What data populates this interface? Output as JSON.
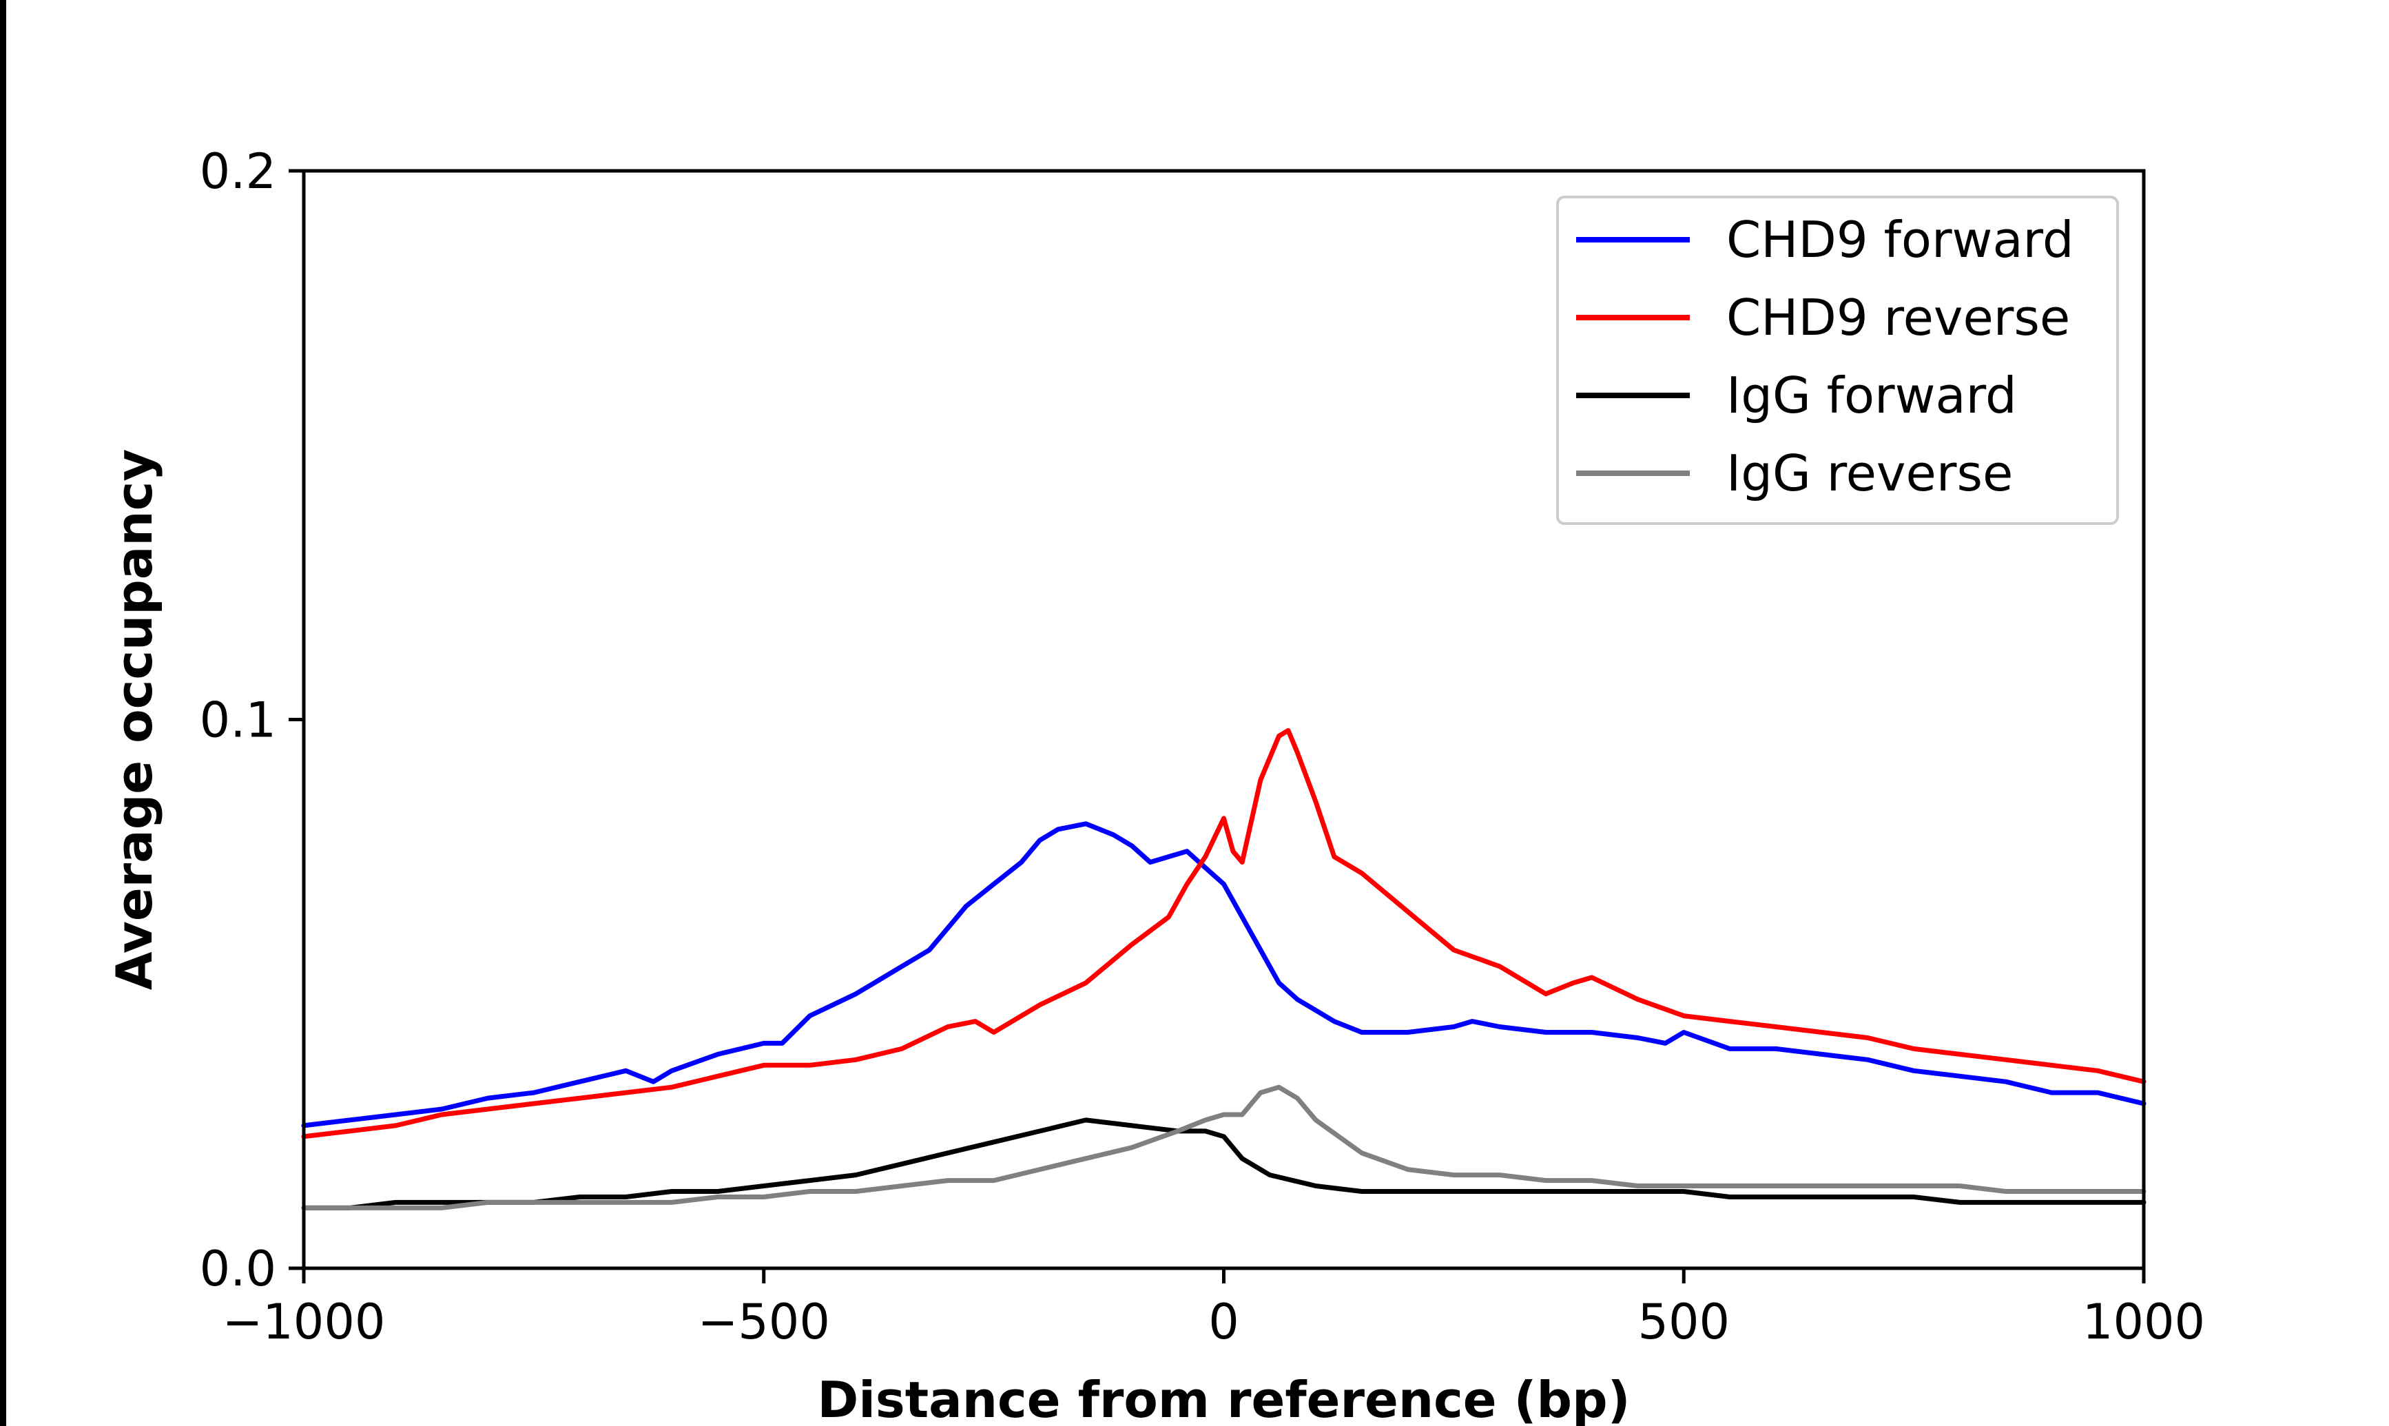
{
  "chart_data": {
    "type": "line",
    "title": "",
    "xlabel": "Distance from reference (bp)",
    "ylabel": "Average occupancy",
    "xlim": [
      -1000,
      1000
    ],
    "ylim": [
      0,
      0.2
    ],
    "xticks": [
      -1000,
      -500,
      0,
      500,
      1000
    ],
    "xtick_labels": [
      "−1000",
      "−500",
      "0",
      "500",
      "1000"
    ],
    "yticks": [
      0.0,
      0.1,
      0.2
    ],
    "ytick_labels": [
      "0.0",
      "0.1",
      "0.2"
    ],
    "grid": false,
    "legend_position": "top-right",
    "series": [
      {
        "name": "CHD9 forward",
        "color": "#0000ff",
        "x": [
          -1000,
          -950,
          -900,
          -850,
          -800,
          -750,
          -700,
          -650,
          -620,
          -600,
          -550,
          -500,
          -480,
          -450,
          -400,
          -350,
          -320,
          -300,
          -280,
          -250,
          -220,
          -200,
          -180,
          -150,
          -120,
          -100,
          -80,
          -60,
          -40,
          -20,
          0,
          20,
          40,
          60,
          80,
          100,
          120,
          150,
          200,
          250,
          270,
          300,
          350,
          400,
          450,
          480,
          500,
          550,
          600,
          650,
          700,
          750,
          800,
          850,
          900,
          950,
          1000
        ],
        "y": [
          0.026,
          0.027,
          0.028,
          0.029,
          0.031,
          0.032,
          0.034,
          0.036,
          0.034,
          0.036,
          0.039,
          0.041,
          0.041,
          0.046,
          0.05,
          0.055,
          0.058,
          0.062,
          0.066,
          0.07,
          0.074,
          0.078,
          0.08,
          0.081,
          0.079,
          0.077,
          0.074,
          0.075,
          0.076,
          0.073,
          0.07,
          0.064,
          0.058,
          0.052,
          0.049,
          0.047,
          0.045,
          0.043,
          0.043,
          0.044,
          0.045,
          0.044,
          0.043,
          0.043,
          0.042,
          0.041,
          0.043,
          0.04,
          0.04,
          0.039,
          0.038,
          0.036,
          0.035,
          0.034,
          0.032,
          0.032,
          0.03
        ]
      },
      {
        "name": "CHD9 reverse",
        "color": "#ff0000",
        "x": [
          -1000,
          -950,
          -900,
          -850,
          -800,
          -750,
          -700,
          -650,
          -600,
          -550,
          -500,
          -450,
          -400,
          -350,
          -300,
          -270,
          -250,
          -200,
          -150,
          -100,
          -60,
          -40,
          -20,
          0,
          10,
          20,
          40,
          60,
          70,
          80,
          100,
          120,
          150,
          200,
          250,
          300,
          350,
          380,
          400,
          450,
          500,
          550,
          600,
          650,
          700,
          750,
          800,
          850,
          900,
          950,
          1000
        ],
        "y": [
          0.024,
          0.025,
          0.026,
          0.028,
          0.029,
          0.03,
          0.031,
          0.032,
          0.033,
          0.035,
          0.037,
          0.037,
          0.038,
          0.04,
          0.044,
          0.045,
          0.043,
          0.048,
          0.052,
          0.059,
          0.064,
          0.07,
          0.075,
          0.082,
          0.076,
          0.074,
          0.089,
          0.097,
          0.098,
          0.094,
          0.085,
          0.075,
          0.072,
          0.065,
          0.058,
          0.055,
          0.05,
          0.052,
          0.053,
          0.049,
          0.046,
          0.045,
          0.044,
          0.043,
          0.042,
          0.04,
          0.039,
          0.038,
          0.037,
          0.036,
          0.034
        ]
      },
      {
        "name": "IgG forward",
        "color": "#000000",
        "x": [
          -1000,
          -950,
          -900,
          -850,
          -800,
          -750,
          -700,
          -650,
          -600,
          -550,
          -500,
          -450,
          -400,
          -350,
          -300,
          -250,
          -200,
          -150,
          -100,
          -50,
          -20,
          0,
          20,
          50,
          100,
          150,
          200,
          250,
          300,
          350,
          400,
          450,
          500,
          550,
          600,
          650,
          700,
          750,
          800,
          850,
          900,
          950,
          1000
        ],
        "y": [
          0.011,
          0.011,
          0.012,
          0.012,
          0.012,
          0.012,
          0.013,
          0.013,
          0.014,
          0.014,
          0.015,
          0.016,
          0.017,
          0.019,
          0.021,
          0.023,
          0.025,
          0.027,
          0.026,
          0.025,
          0.025,
          0.024,
          0.02,
          0.017,
          0.015,
          0.014,
          0.014,
          0.014,
          0.014,
          0.014,
          0.014,
          0.014,
          0.014,
          0.013,
          0.013,
          0.013,
          0.013,
          0.013,
          0.012,
          0.012,
          0.012,
          0.012,
          0.012
        ]
      },
      {
        "name": "IgG reverse",
        "color": "#808080",
        "x": [
          -1000,
          -950,
          -900,
          -850,
          -800,
          -750,
          -700,
          -650,
          -600,
          -550,
          -500,
          -450,
          -400,
          -350,
          -300,
          -250,
          -200,
          -150,
          -100,
          -50,
          -20,
          0,
          20,
          40,
          60,
          80,
          100,
          150,
          200,
          250,
          300,
          350,
          400,
          450,
          500,
          550,
          600,
          650,
          700,
          750,
          800,
          850,
          900,
          950,
          1000
        ],
        "y": [
          0.011,
          0.011,
          0.011,
          0.011,
          0.012,
          0.012,
          0.012,
          0.012,
          0.012,
          0.013,
          0.013,
          0.014,
          0.014,
          0.015,
          0.016,
          0.016,
          0.018,
          0.02,
          0.022,
          0.025,
          0.027,
          0.028,
          0.028,
          0.032,
          0.033,
          0.031,
          0.027,
          0.021,
          0.018,
          0.017,
          0.017,
          0.016,
          0.016,
          0.015,
          0.015,
          0.015,
          0.015,
          0.015,
          0.015,
          0.015,
          0.015,
          0.014,
          0.014,
          0.014,
          0.014
        ]
      }
    ]
  }
}
